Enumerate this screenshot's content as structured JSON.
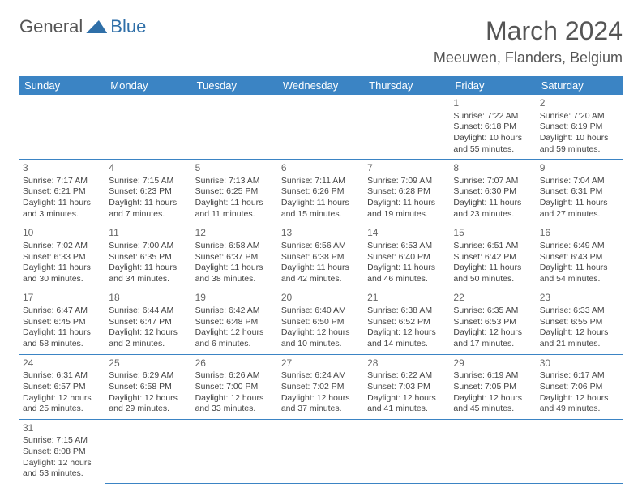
{
  "logo": {
    "part1": "General",
    "part2": "Blue"
  },
  "title": "March 2024",
  "location": "Meeuwen, Flanders, Belgium",
  "colors": {
    "header_bg": "#3b84c4",
    "header_fg": "#ffffff",
    "border": "#3b84c4",
    "text": "#444",
    "title": "#555"
  },
  "day_headers": [
    "Sunday",
    "Monday",
    "Tuesday",
    "Wednesday",
    "Thursday",
    "Friday",
    "Saturday"
  ],
  "weeks": [
    [
      null,
      null,
      null,
      null,
      null,
      {
        "n": "1",
        "sr": "Sunrise: 7:22 AM",
        "ss": "Sunset: 6:18 PM",
        "dl": "Daylight: 10 hours and 55 minutes."
      },
      {
        "n": "2",
        "sr": "Sunrise: 7:20 AM",
        "ss": "Sunset: 6:19 PM",
        "dl": "Daylight: 10 hours and 59 minutes."
      }
    ],
    [
      {
        "n": "3",
        "sr": "Sunrise: 7:17 AM",
        "ss": "Sunset: 6:21 PM",
        "dl": "Daylight: 11 hours and 3 minutes."
      },
      {
        "n": "4",
        "sr": "Sunrise: 7:15 AM",
        "ss": "Sunset: 6:23 PM",
        "dl": "Daylight: 11 hours and 7 minutes."
      },
      {
        "n": "5",
        "sr": "Sunrise: 7:13 AM",
        "ss": "Sunset: 6:25 PM",
        "dl": "Daylight: 11 hours and 11 minutes."
      },
      {
        "n": "6",
        "sr": "Sunrise: 7:11 AM",
        "ss": "Sunset: 6:26 PM",
        "dl": "Daylight: 11 hours and 15 minutes."
      },
      {
        "n": "7",
        "sr": "Sunrise: 7:09 AM",
        "ss": "Sunset: 6:28 PM",
        "dl": "Daylight: 11 hours and 19 minutes."
      },
      {
        "n": "8",
        "sr": "Sunrise: 7:07 AM",
        "ss": "Sunset: 6:30 PM",
        "dl": "Daylight: 11 hours and 23 minutes."
      },
      {
        "n": "9",
        "sr": "Sunrise: 7:04 AM",
        "ss": "Sunset: 6:31 PM",
        "dl": "Daylight: 11 hours and 27 minutes."
      }
    ],
    [
      {
        "n": "10",
        "sr": "Sunrise: 7:02 AM",
        "ss": "Sunset: 6:33 PM",
        "dl": "Daylight: 11 hours and 30 minutes."
      },
      {
        "n": "11",
        "sr": "Sunrise: 7:00 AM",
        "ss": "Sunset: 6:35 PM",
        "dl": "Daylight: 11 hours and 34 minutes."
      },
      {
        "n": "12",
        "sr": "Sunrise: 6:58 AM",
        "ss": "Sunset: 6:37 PM",
        "dl": "Daylight: 11 hours and 38 minutes."
      },
      {
        "n": "13",
        "sr": "Sunrise: 6:56 AM",
        "ss": "Sunset: 6:38 PM",
        "dl": "Daylight: 11 hours and 42 minutes."
      },
      {
        "n": "14",
        "sr": "Sunrise: 6:53 AM",
        "ss": "Sunset: 6:40 PM",
        "dl": "Daylight: 11 hours and 46 minutes."
      },
      {
        "n": "15",
        "sr": "Sunrise: 6:51 AM",
        "ss": "Sunset: 6:42 PM",
        "dl": "Daylight: 11 hours and 50 minutes."
      },
      {
        "n": "16",
        "sr": "Sunrise: 6:49 AM",
        "ss": "Sunset: 6:43 PM",
        "dl": "Daylight: 11 hours and 54 minutes."
      }
    ],
    [
      {
        "n": "17",
        "sr": "Sunrise: 6:47 AM",
        "ss": "Sunset: 6:45 PM",
        "dl": "Daylight: 11 hours and 58 minutes."
      },
      {
        "n": "18",
        "sr": "Sunrise: 6:44 AM",
        "ss": "Sunset: 6:47 PM",
        "dl": "Daylight: 12 hours and 2 minutes."
      },
      {
        "n": "19",
        "sr": "Sunrise: 6:42 AM",
        "ss": "Sunset: 6:48 PM",
        "dl": "Daylight: 12 hours and 6 minutes."
      },
      {
        "n": "20",
        "sr": "Sunrise: 6:40 AM",
        "ss": "Sunset: 6:50 PM",
        "dl": "Daylight: 12 hours and 10 minutes."
      },
      {
        "n": "21",
        "sr": "Sunrise: 6:38 AM",
        "ss": "Sunset: 6:52 PM",
        "dl": "Daylight: 12 hours and 14 minutes."
      },
      {
        "n": "22",
        "sr": "Sunrise: 6:35 AM",
        "ss": "Sunset: 6:53 PM",
        "dl": "Daylight: 12 hours and 17 minutes."
      },
      {
        "n": "23",
        "sr": "Sunrise: 6:33 AM",
        "ss": "Sunset: 6:55 PM",
        "dl": "Daylight: 12 hours and 21 minutes."
      }
    ],
    [
      {
        "n": "24",
        "sr": "Sunrise: 6:31 AM",
        "ss": "Sunset: 6:57 PM",
        "dl": "Daylight: 12 hours and 25 minutes."
      },
      {
        "n": "25",
        "sr": "Sunrise: 6:29 AM",
        "ss": "Sunset: 6:58 PM",
        "dl": "Daylight: 12 hours and 29 minutes."
      },
      {
        "n": "26",
        "sr": "Sunrise: 6:26 AM",
        "ss": "Sunset: 7:00 PM",
        "dl": "Daylight: 12 hours and 33 minutes."
      },
      {
        "n": "27",
        "sr": "Sunrise: 6:24 AM",
        "ss": "Sunset: 7:02 PM",
        "dl": "Daylight: 12 hours and 37 minutes."
      },
      {
        "n": "28",
        "sr": "Sunrise: 6:22 AM",
        "ss": "Sunset: 7:03 PM",
        "dl": "Daylight: 12 hours and 41 minutes."
      },
      {
        "n": "29",
        "sr": "Sunrise: 6:19 AM",
        "ss": "Sunset: 7:05 PM",
        "dl": "Daylight: 12 hours and 45 minutes."
      },
      {
        "n": "30",
        "sr": "Sunrise: 6:17 AM",
        "ss": "Sunset: 7:06 PM",
        "dl": "Daylight: 12 hours and 49 minutes."
      }
    ],
    [
      {
        "n": "31",
        "sr": "Sunrise: 7:15 AM",
        "ss": "Sunset: 8:08 PM",
        "dl": "Daylight: 12 hours and 53 minutes."
      },
      null,
      null,
      null,
      null,
      null,
      null
    ]
  ]
}
